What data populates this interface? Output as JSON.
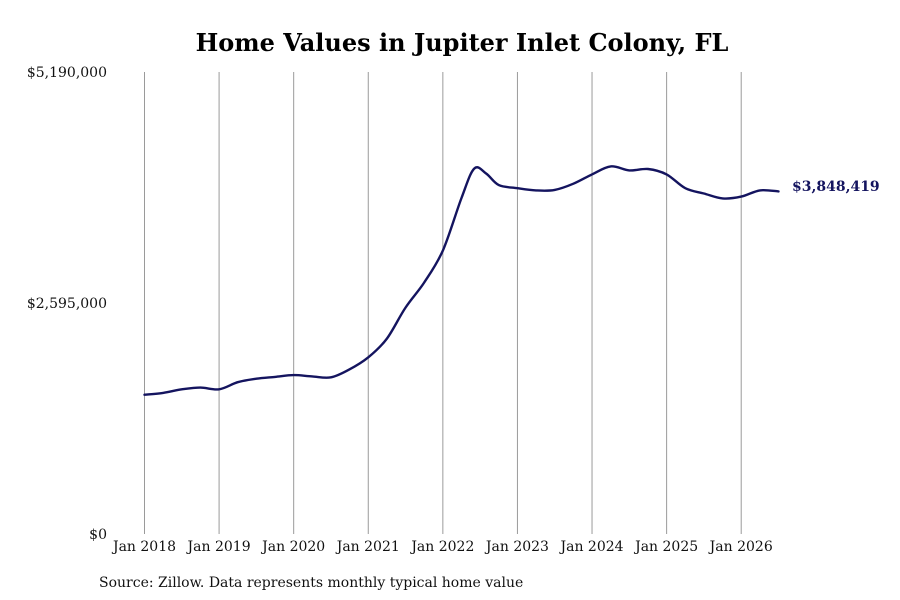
{
  "chart_data": {
    "type": "line",
    "title": "Home Values in Jupiter Inlet Colony, FL",
    "xlabel": "",
    "ylabel": "",
    "y_ticks": [
      {
        "value": 0,
        "label": "$0"
      },
      {
        "value": 2595000,
        "label": "$2,595,000"
      },
      {
        "value": 5190000,
        "label": "$5,190,000"
      }
    ],
    "ylim": [
      0,
      5190000
    ],
    "x_ticks": [
      {
        "value": 2018,
        "label": "Jan 2018"
      },
      {
        "value": 2019,
        "label": "Jan 2019"
      },
      {
        "value": 2020,
        "label": "Jan 2020"
      },
      {
        "value": 2021,
        "label": "Jan 2021"
      },
      {
        "value": 2022,
        "label": "Jan 2022"
      },
      {
        "value": 2023,
        "label": "Jan 2023"
      },
      {
        "value": 2024,
        "label": "Jan 2024"
      },
      {
        "value": 2025,
        "label": "Jan 2025"
      },
      {
        "value": 2026,
        "label": "Jan 2026"
      }
    ],
    "xlim": [
      2018,
      2026.5
    ],
    "grid": "vertical",
    "color": "#14145f",
    "series": [
      {
        "x": [
          2018.0,
          2018.25,
          2018.5,
          2018.75,
          2019.0,
          2019.25,
          2019.5,
          2019.75,
          2020.0,
          2020.25,
          2020.5,
          2020.75,
          2021.0,
          2021.25,
          2021.5,
          2021.75,
          2022.0,
          2022.25,
          2022.42,
          2022.58,
          2022.75,
          2023.0,
          2023.25,
          2023.5,
          2023.75,
          2024.0,
          2024.25,
          2024.5,
          2024.75,
          2025.0,
          2025.25,
          2025.5,
          2025.75,
          2026.0,
          2026.25,
          2026.5
        ],
        "y": [
          1565000,
          1585000,
          1625000,
          1645000,
          1625000,
          1705000,
          1745000,
          1765000,
          1785000,
          1770000,
          1760000,
          1850000,
          1985000,
          2195000,
          2545000,
          2825000,
          3185000,
          3775000,
          4105000,
          4050000,
          3920000,
          3885000,
          3860000,
          3865000,
          3935000,
          4040000,
          4130000,
          4085000,
          4100000,
          4040000,
          3885000,
          3825000,
          3770000,
          3790000,
          3860000,
          3848419
        ]
      }
    ],
    "last_value_label": "$3,848,419",
    "source_note": "Source: Zillow. Data represents monthly typical home value"
  }
}
